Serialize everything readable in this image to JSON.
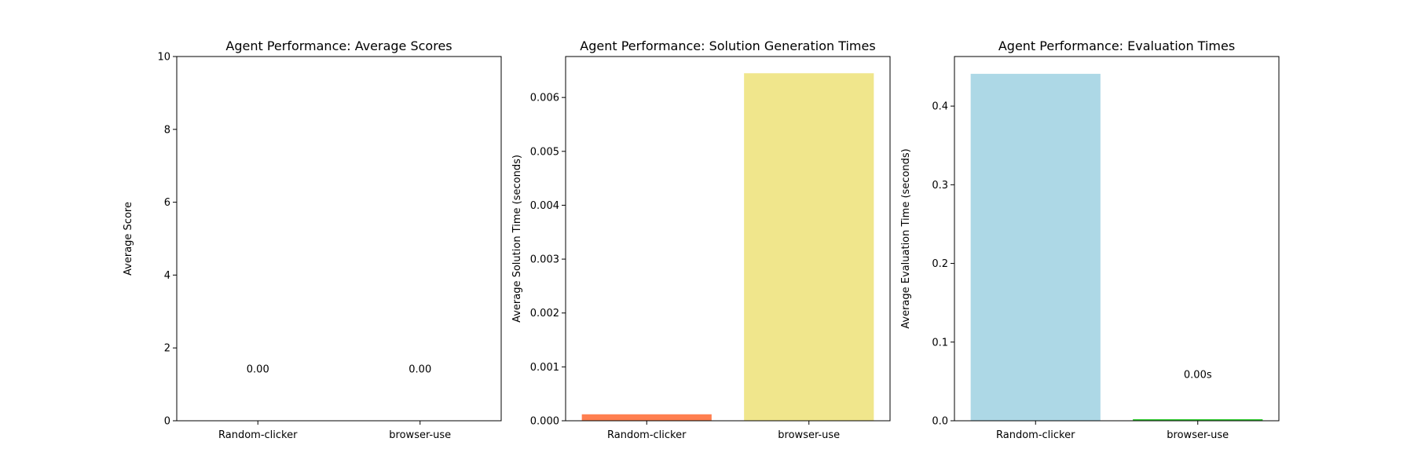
{
  "chart_data": [
    {
      "type": "bar",
      "title": "Agent Performance: Average Scores",
      "xlabel": "",
      "ylabel": "Average Score",
      "categories": [
        "Random-clicker",
        "browser-use"
      ],
      "values": [
        0.0,
        0.0
      ],
      "data_labels": [
        "0.00",
        "0.00"
      ],
      "colors": [
        "#5b9bd5",
        "#70ad47"
      ],
      "ylim": [
        0,
        10
      ],
      "yticks": [
        0,
        2,
        4,
        6,
        8,
        10
      ],
      "ytick_labels": [
        "0",
        "2",
        "4",
        "6",
        "8",
        "10"
      ],
      "label_offset": 0.12,
      "grid": false,
      "legend": "none"
    },
    {
      "type": "bar",
      "title": "Agent Performance: Solution Generation Times",
      "xlabel": "",
      "ylabel": "Average Solution Time (seconds)",
      "categories": [
        "Random-clicker",
        "browser-use"
      ],
      "values": [
        0.00012,
        0.00645
      ],
      "data_labels": [],
      "colors": [
        "#ff7f50",
        "#f0e68c"
      ],
      "ylim": [
        0,
        0.00676
      ],
      "yticks": [
        0,
        0.001,
        0.002,
        0.003,
        0.004,
        0.005,
        0.006
      ],
      "ytick_labels": [
        "0.000",
        "0.001",
        "0.002",
        "0.003",
        "0.004",
        "0.005",
        "0.006"
      ],
      "label_offset": 0,
      "grid": false,
      "legend": "none"
    },
    {
      "type": "bar",
      "title": "Agent Performance: Evaluation Times",
      "xlabel": "",
      "ylabel": "Average Evaluation Time (seconds)",
      "categories": [
        "Random-clicker",
        "browser-use"
      ],
      "values": [
        0.441,
        0.002
      ],
      "data_labels": [
        "",
        "0.00s"
      ],
      "colors": [
        "#add8e6",
        "#32cd32"
      ],
      "ylim": [
        0,
        0.463
      ],
      "yticks": [
        0,
        0.1,
        0.2,
        0.3,
        0.4
      ],
      "ytick_labels": [
        "0.0",
        "0.1",
        "0.2",
        "0.3",
        "0.4"
      ],
      "label_offset": 0.1,
      "grid": false,
      "legend": "none"
    }
  ]
}
